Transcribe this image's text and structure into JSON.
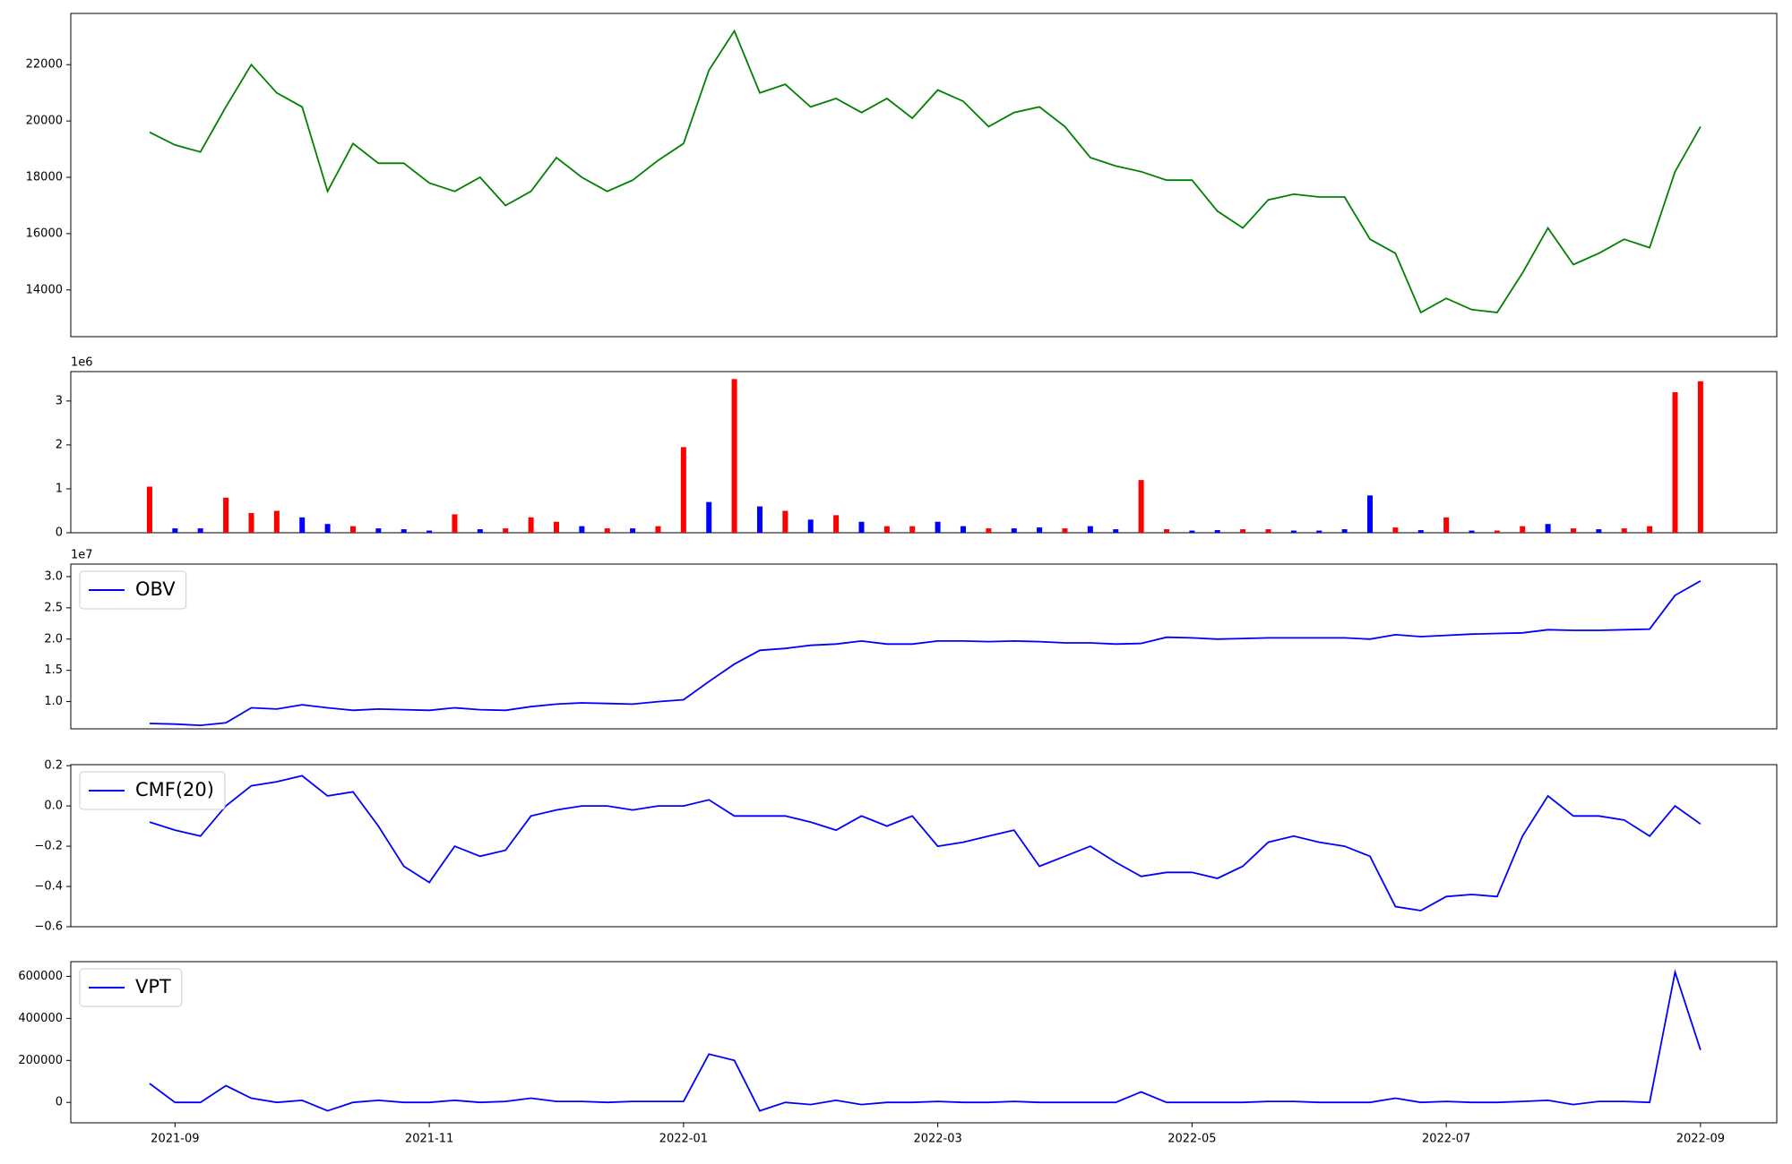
{
  "chart_data": [
    {
      "type": "line",
      "x": [
        -0.2,
        0,
        0.2,
        0.4,
        0.6,
        0.8,
        1.0,
        1.2,
        1.4,
        1.6,
        1.8,
        2.0,
        2.2,
        2.4,
        2.6,
        2.8,
        3.0,
        3.2,
        3.4,
        3.6,
        3.8,
        4.0,
        4.2,
        4.4,
        4.6,
        4.8,
        5.0,
        5.2,
        5.4,
        5.6,
        5.8,
        6.0,
        6.2,
        6.4,
        6.6,
        6.8,
        7.0,
        7.2,
        7.4,
        7.6,
        7.8,
        8.0,
        8.2,
        8.4,
        8.6,
        8.8,
        9.0,
        9.2,
        9.4,
        9.6,
        9.8,
        10.0,
        10.2,
        10.4,
        10.6,
        10.8,
        11.0,
        11.2,
        11.4,
        11.6,
        11.8,
        12.0
      ],
      "xlim": [
        -0.82,
        12.6
      ],
      "series": [
        {
          "color": "#008000",
          "values": [
            19600,
            19150,
            18900,
            20500,
            22000,
            21000,
            20500,
            17500,
            19200,
            18500,
            18500,
            17800,
            17500,
            18000,
            17000,
            17500,
            18700,
            18000,
            17500,
            17900,
            18600,
            19200,
            21800,
            23200,
            21000,
            21300,
            20500,
            20800,
            20300,
            20800,
            20100,
            21100,
            20700,
            19800,
            20300,
            20500,
            19800,
            18700,
            18400,
            18200,
            17900,
            17900,
            16800,
            16200,
            17200,
            17400,
            17300,
            17300,
            15800,
            15300,
            13200,
            13700,
            13300,
            13200,
            14600,
            16200,
            14900,
            15300,
            15800,
            15500,
            18200,
            19800
          ]
        }
      ],
      "ylim": [
        12340,
        23820
      ],
      "yticks": [
        14000,
        16000,
        18000,
        20000,
        22000
      ]
    },
    {
      "type": "bar",
      "values": [
        1.05,
        0.1,
        0.1,
        0.8,
        0.45,
        0.5,
        0.35,
        0.2,
        0.15,
        0.1,
        0.08,
        0.05,
        0.42,
        0.08,
        0.1,
        0.35,
        0.25,
        0.15,
        0.1,
        0.1,
        0.15,
        1.95,
        0.7,
        3.5,
        0.6,
        0.5,
        0.3,
        0.4,
        0.25,
        0.15,
        0.15,
        0.25,
        0.15,
        0.1,
        0.1,
        0.12,
        0.1,
        0.15,
        0.08,
        1.2,
        0.08,
        0.05,
        0.06,
        0.08,
        0.08,
        0.05,
        0.05,
        0.08,
        0.85,
        0.12,
        0.06,
        0.35,
        0.05,
        0.05,
        0.15,
        0.2,
        0.1,
        0.08,
        0.1,
        0.15,
        3.2,
        3.45
      ],
      "colors": [
        "red",
        "blue",
        "blue",
        "red",
        "red",
        "red",
        "blue",
        "blue",
        "red",
        "blue",
        "blue",
        "blue",
        "red",
        "blue",
        "red",
        "red",
        "red",
        "blue",
        "red",
        "blue",
        "red",
        "red",
        "blue",
        "red",
        "blue",
        "red",
        "blue",
        "red",
        "blue",
        "red",
        "red",
        "blue",
        "blue",
        "red",
        "blue",
        "blue",
        "red",
        "blue",
        "blue",
        "red",
        "red",
        "blue",
        "blue",
        "red",
        "red",
        "blue",
        "blue",
        "blue",
        "blue",
        "red",
        "blue",
        "red",
        "blue",
        "red",
        "red",
        "blue",
        "red",
        "blue",
        "red",
        "red",
        "red",
        "red"
      ],
      "ylim": [
        0,
        3.67
      ],
      "yticks": [
        0,
        1,
        2,
        3
      ],
      "offset_label": "1e6"
    },
    {
      "type": "line",
      "series": [
        {
          "name": "OBV",
          "color": "blue",
          "values": [
            0.65,
            0.64,
            0.62,
            0.66,
            0.9,
            0.88,
            0.95,
            0.9,
            0.86,
            0.88,
            0.87,
            0.86,
            0.9,
            0.87,
            0.86,
            0.92,
            0.96,
            0.98,
            0.97,
            0.96,
            1.0,
            1.03,
            1.32,
            1.6,
            1.82,
            1.85,
            1.9,
            1.92,
            1.97,
            1.92,
            1.92,
            1.97,
            1.97,
            1.96,
            1.97,
            1.96,
            1.94,
            1.94,
            1.92,
            1.93,
            2.03,
            2.02,
            2.0,
            2.01,
            2.02,
            2.02,
            2.02,
            2.02,
            2.0,
            2.07,
            2.04,
            2.06,
            2.08,
            2.09,
            2.1,
            2.15,
            2.14,
            2.14,
            2.15,
            2.16,
            2.7,
            2.93
          ]
        }
      ],
      "ylim": [
        0.564,
        3.2
      ],
      "yticks": [
        {
          "value": 1,
          "label": "1.0"
        },
        1.5,
        {
          "value": 2,
          "label": "2.0"
        },
        2.5,
        {
          "value": 3,
          "label": "3.0"
        }
      ],
      "offset_label": "1e7",
      "legend": "upper left"
    },
    {
      "type": "line",
      "series": [
        {
          "name": "CMF(20)",
          "color": "blue",
          "values": [
            -0.08,
            -0.12,
            -0.15,
            0.0,
            0.1,
            0.12,
            0.15,
            0.05,
            0.07,
            -0.1,
            -0.3,
            -0.38,
            -0.2,
            -0.25,
            -0.22,
            -0.05,
            -0.02,
            0.0,
            0.0,
            -0.02,
            0.0,
            0.0,
            0.03,
            -0.05,
            -0.05,
            -0.05,
            -0.08,
            -0.12,
            -0.05,
            -0.1,
            -0.05,
            -0.2,
            -0.18,
            -0.15,
            -0.12,
            -0.3,
            -0.25,
            -0.2,
            -0.28,
            -0.35,
            -0.33,
            -0.33,
            -0.36,
            -0.3,
            -0.18,
            -0.15,
            -0.18,
            -0.2,
            -0.25,
            -0.5,
            -0.52,
            -0.45,
            -0.44,
            -0.45,
            -0.15,
            0.05,
            -0.05,
            -0.05,
            -0.07,
            -0.15,
            0.0,
            -0.09
          ]
        }
      ],
      "ylim": [
        -0.6,
        0.205
      ],
      "yticks": [
        {
          "value": -0.6,
          "label": "−0.6"
        },
        {
          "value": -0.4,
          "label": "−0.4"
        },
        {
          "value": -0.2,
          "label": "−0.2"
        },
        {
          "value": 0,
          "label": "0.0"
        },
        0.2
      ],
      "legend": "upper left"
    },
    {
      "type": "line",
      "series": [
        {
          "name": "VPT",
          "color": "blue",
          "values": [
            90000,
            0,
            0,
            80000,
            20000,
            0,
            10000,
            -40000,
            0,
            10000,
            0,
            0,
            10000,
            0,
            5000,
            20000,
            5000,
            5000,
            0,
            5000,
            5000,
            5000,
            230000,
            200000,
            -40000,
            0,
            -10000,
            10000,
            -10000,
            0,
            0,
            5000,
            0,
            0,
            5000,
            0,
            0,
            0,
            0,
            50000,
            0,
            0,
            0,
            0,
            5000,
            5000,
            0,
            0,
            0,
            20000,
            0,
            5000,
            0,
            0,
            5000,
            10000,
            -10000,
            5000,
            5000,
            0,
            620000,
            250000
          ]
        }
      ],
      "ylim": [
        -97000,
        670000
      ],
      "yticks": [
        0,
        200000,
        400000,
        600000
      ],
      "xticks": [
        {
          "value": 0,
          "label": "2021-09"
        },
        {
          "value": 2,
          "label": "2021-11"
        },
        {
          "value": 4,
          "label": "2022-01"
        },
        {
          "value": 6,
          "label": "2022-03"
        },
        {
          "value": 8,
          "label": "2022-05"
        },
        {
          "value": 10,
          "label": "2022-07"
        },
        {
          "value": 12,
          "label": "2022-09"
        }
      ],
      "legend": "upper left"
    }
  ]
}
